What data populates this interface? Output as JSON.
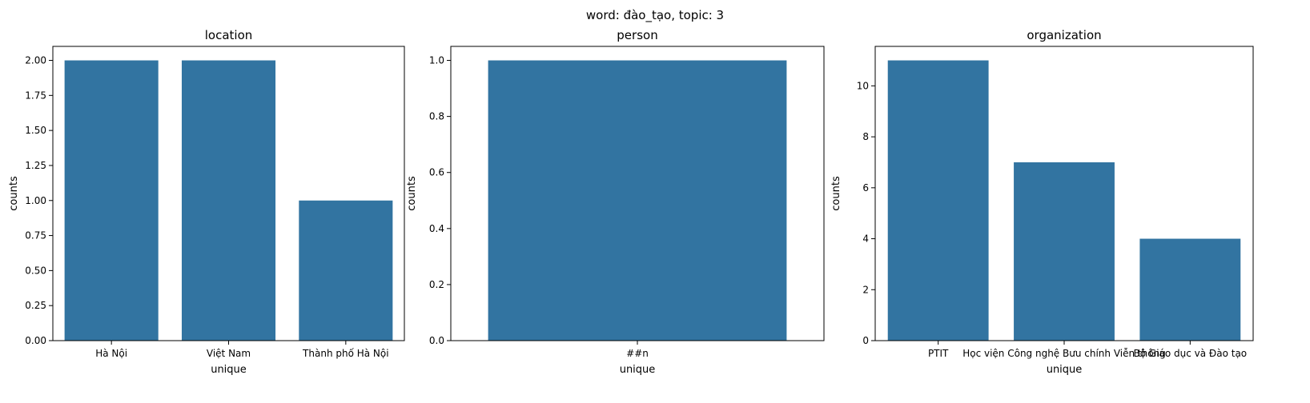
{
  "figure": {
    "suptitle": "word: đào_tạo, topic: 3"
  },
  "colors": {
    "bar": "#3274a1",
    "axis": "#000000",
    "background": "#ffffff"
  },
  "chart_data": [
    {
      "type": "bar",
      "title": "location",
      "xlabel": "unique",
      "ylabel": "counts",
      "categories": [
        "Hà Nội",
        "Việt Nam",
        "Thành phố Hà Nội"
      ],
      "values": [
        2,
        2,
        1
      ],
      "ylim": [
        0,
        2.1
      ],
      "yticks": [
        0,
        0.25,
        0.5,
        0.75,
        1.0,
        1.25,
        1.5,
        1.75,
        2.0
      ],
      "ytick_labels": [
        "0.00",
        "0.25",
        "0.50",
        "0.75",
        "1.00",
        "1.25",
        "1.50",
        "1.75",
        "2.00"
      ],
      "grid": false
    },
    {
      "type": "bar",
      "title": "person",
      "xlabel": "unique",
      "ylabel": "counts",
      "categories": [
        "##n"
      ],
      "values": [
        1
      ],
      "ylim": [
        0,
        1.05
      ],
      "yticks": [
        0,
        0.2,
        0.4,
        0.6,
        0.8,
        1.0
      ],
      "ytick_labels": [
        "0.0",
        "0.2",
        "0.4",
        "0.6",
        "0.8",
        "1.0"
      ],
      "grid": false
    },
    {
      "type": "bar",
      "title": "organization",
      "xlabel": "unique",
      "ylabel": "counts",
      "categories": [
        "PTIT",
        "Học viện Công nghệ Bưu chính Viễn thông",
        "Bộ Giáo dục và Đào tạo"
      ],
      "values": [
        11,
        7,
        4
      ],
      "ylim": [
        0,
        11.55
      ],
      "yticks": [
        0,
        2,
        4,
        6,
        8,
        10
      ],
      "ytick_labels": [
        "0",
        "2",
        "4",
        "6",
        "8",
        "10"
      ],
      "grid": false
    }
  ]
}
